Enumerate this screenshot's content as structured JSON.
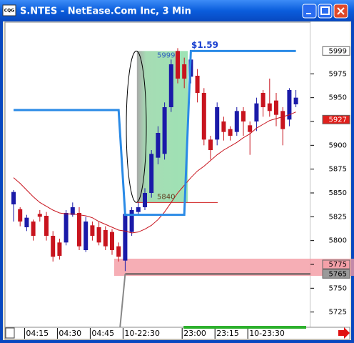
{
  "app_icon": "CQG",
  "chart_data": {
    "type": "candlestick",
    "title": "S.NTES - NetEase.Com Inc, 3 Min",
    "categories": [
      null,
      null,
      "04:15",
      null,
      null,
      null,
      null,
      "04:30",
      null,
      null,
      null,
      null,
      "04:45",
      null,
      null,
      null,
      null,
      "10-22:30",
      null,
      null,
      null,
      null,
      null,
      null,
      null,
      null,
      "23:00",
      null,
      null,
      null,
      null,
      "23:15",
      null,
      null,
      null,
      null,
      "10-23:30",
      null,
      null,
      null,
      null,
      null,
      null,
      null
    ],
    "up_color": "#1a1aa8",
    "down_color": "#c8141e",
    "ohlc": [
      [
        5838,
        5853,
        5820,
        5851
      ],
      [
        5833,
        5835,
        5815,
        5820
      ],
      [
        5814,
        5827,
        5810,
        5824
      ],
      [
        5820,
        5822,
        5800,
        5805
      ],
      [
        5828,
        5832,
        5820,
        5825
      ],
      [
        5826,
        5830,
        5800,
        5805
      ],
      [
        5805,
        5810,
        5778,
        5783
      ],
      [
        5798,
        5802,
        5780,
        5784
      ],
      [
        5798,
        5832,
        5795,
        5829
      ],
      [
        5827,
        5840,
        5825,
        5835
      ],
      [
        5829,
        5835,
        5790,
        5794
      ],
      [
        5790,
        5825,
        5788,
        5820
      ],
      [
        5816,
        5820,
        5800,
        5805
      ],
      [
        5814,
        5820,
        5795,
        5798
      ],
      [
        5811,
        5815,
        5790,
        5794
      ],
      [
        5809,
        5812,
        5785,
        5790
      ],
      [
        5794,
        5798,
        5778,
        5783
      ],
      [
        5779,
        5830,
        5768,
        5828
      ],
      [
        5809,
        5835,
        5805,
        5832
      ],
      [
        5830,
        5840,
        5826,
        5835
      ],
      [
        5835,
        5855,
        5832,
        5850
      ],
      [
        5850,
        5895,
        5845,
        5891
      ],
      [
        5887,
        5920,
        5880,
        5913
      ],
      [
        5891,
        5945,
        5885,
        5940
      ],
      [
        5940,
        5990,
        5935,
        5985
      ],
      [
        5999,
        6002,
        5965,
        5970
      ],
      [
        5985,
        5992,
        5960,
        5970
      ],
      [
        5972,
        5995,
        5965,
        5990
      ],
      [
        5973,
        5980,
        5945,
        5955
      ],
      [
        5955,
        5960,
        5900,
        5906
      ],
      [
        5906,
        5910,
        5885,
        5895
      ],
      [
        5906,
        5945,
        5900,
        5940
      ],
      [
        5925,
        5930,
        5905,
        5914
      ],
      [
        5917,
        5920,
        5905,
        5910
      ],
      [
        5914,
        5940,
        5910,
        5936
      ],
      [
        5936,
        5940,
        5910,
        5925
      ],
      [
        5921,
        5925,
        5890,
        5914
      ],
      [
        5925,
        5950,
        5915,
        5944
      ],
      [
        5955,
        5958,
        5930,
        5940
      ],
      [
        5944,
        5970,
        5930,
        5936
      ],
      [
        5947,
        5955,
        5920,
        5932
      ],
      [
        5936,
        5940,
        5900,
        5917
      ],
      [
        5927,
        5960,
        5920,
        5958
      ],
      [
        5943,
        5958,
        5940,
        5950
      ]
    ],
    "series": [
      {
        "color": "#c8141e",
        "values": [
          5866,
          5860,
          5853,
          5846,
          5840,
          5836,
          5832,
          5829,
          5828,
          5828,
          5827,
          5826,
          5824,
          5820,
          5817,
          5814,
          5811,
          5810,
          5808,
          5809,
          5812,
          5816,
          5822,
          5830,
          5840,
          5850,
          5858,
          5866,
          5873,
          5878,
          5884,
          5890,
          5895,
          5899,
          5903,
          5908,
          5912,
          5918,
          5922,
          5926,
          5928,
          5930,
          5932,
          5935
        ]
      },
      {
        "color": "#2a8ae6",
        "values": [
          5937,
          5937,
          5937,
          5937,
          5937,
          5937,
          5937,
          5937,
          5937,
          5937,
          5937,
          5937,
          5937,
          5937,
          5937,
          5937,
          5937,
          5827,
          5827,
          5827,
          5827,
          5827,
          5827,
          5827,
          5827,
          5827,
          5827,
          5999,
          5999,
          5999,
          5999,
          5999,
          5999,
          5999,
          5999,
          5999,
          5999,
          5999,
          5999,
          5999,
          5999,
          5999,
          5999,
          5999
        ]
      }
    ],
    "ylim": [
      5709,
      6030
    ],
    "yticks": [
      5725,
      5750,
      5775,
      5800,
      5825,
      5850,
      5875,
      5900,
      5925,
      5950,
      5975
    ],
    "price_markers": [
      {
        "value": 5999,
        "fill": "#ffffff",
        "text_color": "#000000"
      },
      {
        "value": 5927,
        "fill": "#e0201c",
        "text_color": "#ffffff"
      },
      {
        "value": 5775,
        "fill": "#f4a0a8",
        "text_color": "#000000"
      },
      {
        "value": 5765,
        "fill": "#9a9a9a",
        "text_color": "#000000"
      }
    ],
    "zone": {
      "high": 5999,
      "low": 5840,
      "label": "$1.59"
    },
    "band": {
      "low": 5763,
      "high": 5781,
      "color": "#f49aa2"
    }
  }
}
